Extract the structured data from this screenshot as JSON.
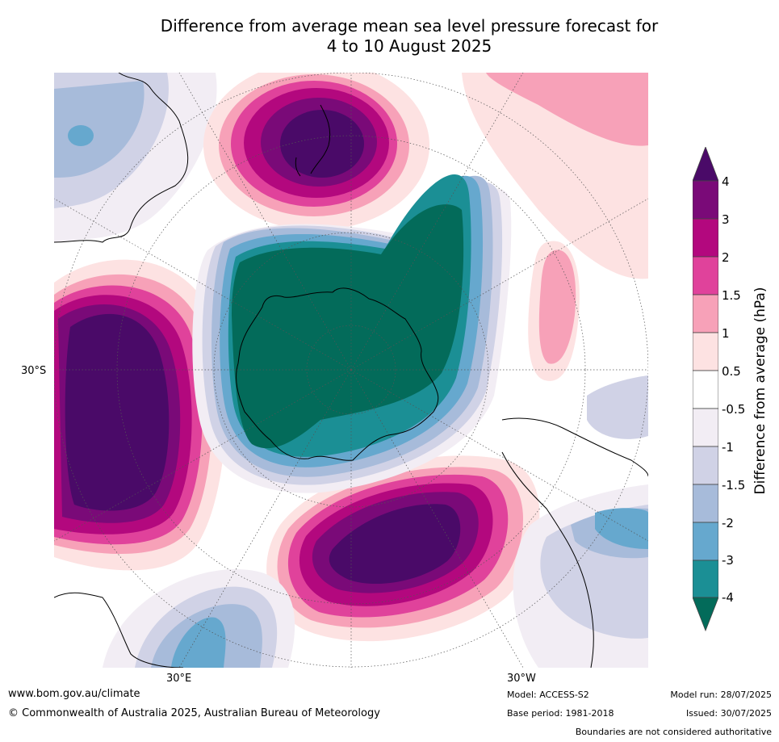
{
  "title_line1": "Difference from average mean sea level pressure forecast for",
  "title_line2": "4 to 10 August 2025",
  "map": {
    "lat_label": "30°S",
    "lon_label_east": "30°E",
    "lon_label_west": "30°W"
  },
  "colorbar": {
    "title": "Difference from average (hPa)",
    "ticks": [
      "4",
      "3",
      "2",
      "1.5",
      "1",
      "0.5",
      "-0.5",
      "-1",
      "-1.5",
      "-2",
      "-3",
      "-4"
    ],
    "colors": {
      "over": "#4a0a68",
      "3_4": "#7a0a78",
      "2_3": "#b3087e",
      "1.5_2": "#e0429b",
      "1_1.5": "#f7a1b8",
      "0.5_1": "#fde2e2",
      "neutral": "#ffffff",
      "m1_m0.5": "#f2edf4",
      "m1.5_m1": "#d0d2e6",
      "m2_m1.5": "#a7bbda",
      "m3_m2": "#66a8ce",
      "m4_m3": "#1b8f95",
      "under": "#036b5a"
    }
  },
  "footer": {
    "url": "www.bom.gov.au/climate",
    "copyright": "© Commonwealth of Australia 2025, Australian Bureau of Meteorology",
    "model": "Model: ACCESS-S2",
    "base_period": "Base period: 1981-2018",
    "model_run": "Model run: 28/07/2025",
    "issued": "Issued: 30/07/2025",
    "disclaimer": "Boundaries are not considered authoritative"
  }
}
